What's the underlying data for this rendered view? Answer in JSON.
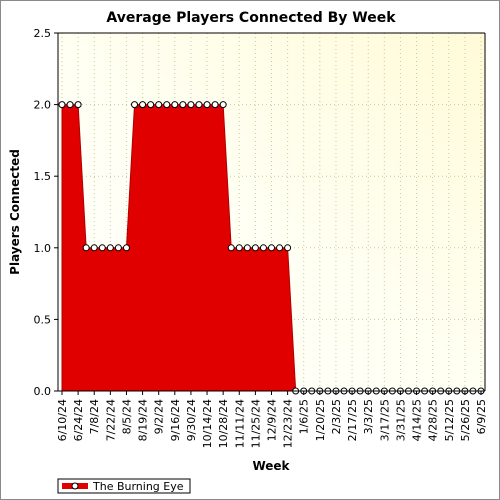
{
  "chart_data": {
    "type": "area",
    "title": "Average Players Connected By Week",
    "xlabel": "Week",
    "ylabel": "Players Connected",
    "ylim": [
      0,
      2.5
    ],
    "yticks": [
      "0.0",
      "0.5",
      "1.0",
      "1.5",
      "2.0",
      "2.5"
    ],
    "x": [
      "6/10/24",
      "6/17/24",
      "6/24/24",
      "7/1/24",
      "7/8/24",
      "7/15/24",
      "7/22/24",
      "7/29/24",
      "8/5/24",
      "8/12/24",
      "8/19/24",
      "8/26/24",
      "9/2/24",
      "9/9/24",
      "9/16/24",
      "9/23/24",
      "9/30/24",
      "10/7/24",
      "10/14/24",
      "10/21/24",
      "10/28/24",
      "11/4/24",
      "11/11/24",
      "11/18/24",
      "11/25/24",
      "12/2/24",
      "12/9/24",
      "12/16/24",
      "12/23/24",
      "12/30/24",
      "1/6/25",
      "1/13/25",
      "1/20/25",
      "1/27/25",
      "2/3/25",
      "2/10/25",
      "2/17/25",
      "2/24/25",
      "3/3/25",
      "3/10/25",
      "3/17/25",
      "3/24/25",
      "3/31/25",
      "4/7/25",
      "4/14/25",
      "4/21/25",
      "4/28/25",
      "5/5/25",
      "5/12/25",
      "5/19/25",
      "5/26/25",
      "6/2/25",
      "6/9/25"
    ],
    "xtick_labels": [
      "6/10/24",
      "6/24/24",
      "7/8/24",
      "7/22/24",
      "8/5/24",
      "8/19/24",
      "9/2/24",
      "9/16/24",
      "9/30/24",
      "10/14/24",
      "10/28/24",
      "11/11/24",
      "11/25/24",
      "12/9/24",
      "12/23/24",
      "1/6/25",
      "1/20/25",
      "2/3/25",
      "2/17/25",
      "3/3/25",
      "3/17/25",
      "3/31/25",
      "4/14/25",
      "4/28/25",
      "5/12/25",
      "5/26/25",
      "6/9/25"
    ],
    "series": [
      {
        "name": "The Burning Eye",
        "color": "#e00000",
        "values": [
          2,
          2,
          2,
          1,
          1,
          1,
          1,
          1,
          1,
          2,
          2,
          2,
          2,
          2,
          2,
          2,
          2,
          2,
          2,
          2,
          2,
          1,
          1,
          1,
          1,
          1,
          1,
          1,
          1,
          0,
          0,
          0,
          0,
          0,
          0,
          0,
          0,
          0,
          0,
          0,
          0,
          0,
          0,
          0,
          0,
          0,
          0,
          0,
          0,
          0,
          0,
          0,
          0
        ]
      }
    ],
    "grid": true,
    "legend_position": "bottom-left",
    "background_gradient": [
      "#ffffff",
      "#fffff0",
      "#fffde0"
    ]
  }
}
